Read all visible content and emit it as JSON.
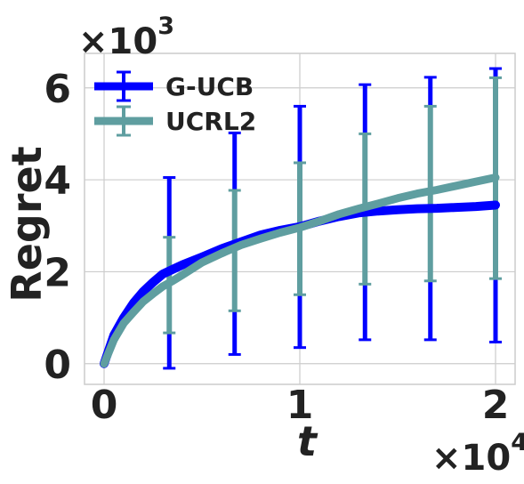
{
  "chart_data": {
    "type": "line",
    "title": "",
    "xlabel": "t",
    "ylabel": "Regret",
    "x_multiplier": {
      "base": "×10",
      "exp": "4"
    },
    "y_multiplier": {
      "base": "×10",
      "exp": "3"
    },
    "xlim": [
      -0.1,
      2.1
    ],
    "ylim": [
      -0.45,
      6.75
    ],
    "x_ticks": [
      0,
      1,
      2
    ],
    "y_ticks": [
      0,
      2,
      4,
      6
    ],
    "grid": true,
    "legend_position": "top-left",
    "series": [
      {
        "name": "G-UCB",
        "color": "#0000ff",
        "x": [
          0,
          0.05,
          0.1,
          0.15,
          0.2,
          0.25,
          0.3,
          0.35,
          0.4,
          0.5,
          0.6,
          0.7,
          0.8,
          0.9,
          1.0,
          1.1,
          1.2,
          1.3,
          1.4,
          1.5,
          1.6,
          1.7,
          1.8,
          1.9,
          2.0
        ],
        "y": [
          0,
          0.62,
          1.0,
          1.32,
          1.57,
          1.77,
          1.95,
          2.05,
          2.15,
          2.32,
          2.5,
          2.65,
          2.8,
          2.9,
          2.98,
          3.1,
          3.2,
          3.28,
          3.32,
          3.35,
          3.37,
          3.38,
          3.4,
          3.42,
          3.45
        ],
        "error_bars": [
          {
            "x": 0.333,
            "lower": -0.1,
            "upper": 4.05
          },
          {
            "x": 0.667,
            "lower": 0.2,
            "upper": 5.02
          },
          {
            "x": 1.0,
            "lower": 0.35,
            "upper": 5.6
          },
          {
            "x": 1.333,
            "lower": 0.52,
            "upper": 6.07
          },
          {
            "x": 1.667,
            "lower": 0.52,
            "upper": 6.23
          },
          {
            "x": 2.0,
            "lower": 0.47,
            "upper": 6.42
          }
        ]
      },
      {
        "name": "UCRL2",
        "color": "#5f9ea0",
        "x": [
          0,
          0.05,
          0.1,
          0.15,
          0.2,
          0.25,
          0.3,
          0.35,
          0.4,
          0.5,
          0.6,
          0.7,
          0.8,
          0.9,
          1.0,
          1.1,
          1.2,
          1.3,
          1.4,
          1.5,
          1.6,
          1.7,
          1.8,
          1.9,
          2.0
        ],
        "y": [
          0,
          0.52,
          0.88,
          1.12,
          1.35,
          1.52,
          1.68,
          1.8,
          1.93,
          2.2,
          2.4,
          2.58,
          2.72,
          2.85,
          2.96,
          3.1,
          3.25,
          3.37,
          3.48,
          3.6,
          3.7,
          3.78,
          3.87,
          3.96,
          4.05
        ],
        "error_bars": [
          {
            "x": 0.333,
            "lower": 0.67,
            "upper": 2.75
          },
          {
            "x": 0.667,
            "lower": 1.15,
            "upper": 3.77
          },
          {
            "x": 1.0,
            "lower": 1.5,
            "upper": 4.37
          },
          {
            "x": 1.333,
            "lower": 1.73,
            "upper": 5.0
          },
          {
            "x": 1.667,
            "lower": 1.8,
            "upper": 5.6
          },
          {
            "x": 2.0,
            "lower": 1.85,
            "upper": 6.22
          }
        ]
      }
    ]
  }
}
